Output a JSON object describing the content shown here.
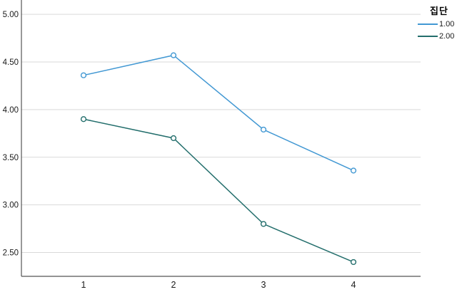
{
  "chart_data": {
    "type": "line",
    "title": "",
    "xlabel": "",
    "ylabel": "",
    "categories": [
      "1",
      "2",
      "3",
      "4"
    ],
    "series": [
      {
        "name": "1.00",
        "color": "#4298d3",
        "values": [
          4.36,
          4.57,
          3.79,
          3.36
        ]
      },
      {
        "name": "2.00",
        "color": "#236e6c",
        "values": [
          3.9,
          3.7,
          2.8,
          2.4
        ]
      }
    ],
    "ylim": [
      2.25,
      5.15
    ],
    "yticks": [
      5.0,
      4.5,
      4.0,
      3.5,
      3.0,
      2.5
    ],
    "ytick_labels": [
      "5.00",
      "4.50",
      "4.00",
      "3.50",
      "3.00",
      "2.50"
    ],
    "grid": true,
    "marker": "open-circle",
    "legend": {
      "title": "집단",
      "position": "top-right",
      "entries": [
        "1.00",
        "2.00"
      ]
    }
  },
  "colors": {
    "background": "#ffffff",
    "gridline": "#d9d9d9",
    "axis_line": "#555555",
    "tick_text": "#1a1a1a"
  }
}
